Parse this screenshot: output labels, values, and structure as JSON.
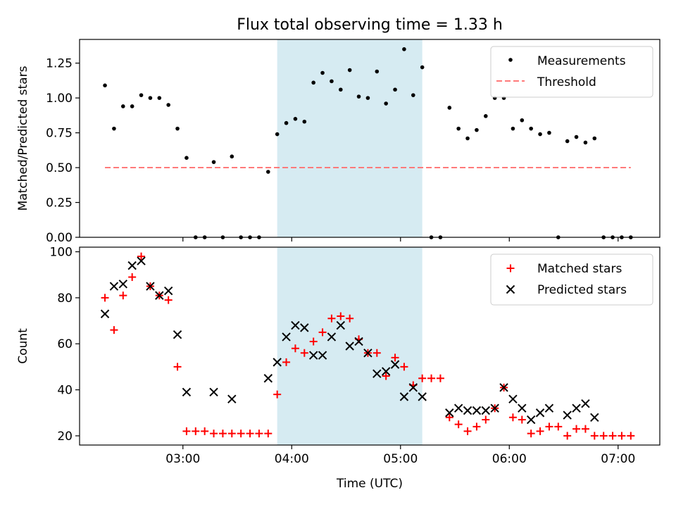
{
  "chart_data": {
    "type": "scatter",
    "title": "Flux total observing time = 1.33 h",
    "xlabel": "Time (UTC)",
    "x_tick_labels": [
      "03:00",
      "04:00",
      "05:00",
      "06:00",
      "07:00"
    ],
    "shaded_interval": [
      "03:52",
      "05:12"
    ],
    "shade_color": "#add8e6",
    "panels": [
      {
        "ylabel": "Matched/Predicted stars",
        "ylim": [
          0,
          1.42
        ],
        "y_tick_labels": [
          "0.00",
          "0.25",
          "0.50",
          "0.75",
          "1.00",
          "1.25"
        ],
        "legend_position": "upper right",
        "series": [
          {
            "name": "Measurements",
            "marker": "dot",
            "color": "#000000",
            "points": [
              [
                "02:17",
                1.09
              ],
              [
                "02:22",
                0.78
              ],
              [
                "02:27",
                0.94
              ],
              [
                "02:32",
                0.94
              ],
              [
                "02:37",
                1.02
              ],
              [
                "02:42",
                1.0
              ],
              [
                "02:47",
                1.0
              ],
              [
                "02:52",
                0.95
              ],
              [
                "02:57",
                0.78
              ],
              [
                "03:02",
                0.57
              ],
              [
                "03:07",
                0.0
              ],
              [
                "03:12",
                0.0
              ],
              [
                "03:17",
                0.54
              ],
              [
                "03:22",
                0.0
              ],
              [
                "03:27",
                0.58
              ],
              [
                "03:32",
                0.0
              ],
              [
                "03:37",
                0.0
              ],
              [
                "03:42",
                0.0
              ],
              [
                "03:47",
                0.47
              ],
              [
                "03:52",
                0.74
              ],
              [
                "03:57",
                0.82
              ],
              [
                "04:02",
                0.85
              ],
              [
                "04:07",
                0.83
              ],
              [
                "04:12",
                1.11
              ],
              [
                "04:17",
                1.18
              ],
              [
                "04:22",
                1.12
              ],
              [
                "04:27",
                1.06
              ],
              [
                "04:32",
                1.2
              ],
              [
                "04:37",
                1.01
              ],
              [
                "04:42",
                1.0
              ],
              [
                "04:47",
                1.19
              ],
              [
                "04:52",
                0.96
              ],
              [
                "04:57",
                1.06
              ],
              [
                "05:02",
                1.35
              ],
              [
                "05:07",
                1.02
              ],
              [
                "05:12",
                1.22
              ],
              [
                "05:17",
                0.0
              ],
              [
                "05:22",
                0.0
              ],
              [
                "05:27",
                0.93
              ],
              [
                "05:32",
                0.78
              ],
              [
                "05:37",
                0.71
              ],
              [
                "05:42",
                0.77
              ],
              [
                "05:47",
                0.87
              ],
              [
                "05:52",
                1.0
              ],
              [
                "05:57",
                1.0
              ],
              [
                "06:02",
                0.78
              ],
              [
                "06:07",
                0.84
              ],
              [
                "06:12",
                0.78
              ],
              [
                "06:17",
                0.74
              ],
              [
                "06:22",
                0.75
              ],
              [
                "06:27",
                0.0
              ],
              [
                "06:32",
                0.69
              ],
              [
                "06:37",
                0.72
              ],
              [
                "06:42",
                0.68
              ],
              [
                "06:47",
                0.71
              ],
              [
                "06:52",
                0.0
              ],
              [
                "06:57",
                0.0
              ],
              [
                "07:02",
                0.0
              ],
              [
                "07:07",
                0.0
              ]
            ]
          },
          {
            "name": "Threshold",
            "marker": "dashed-line",
            "color": "#ff7a7a",
            "points": [
              [
                "02:17",
                0.5
              ],
              [
                "07:07",
                0.5
              ]
            ]
          }
        ]
      },
      {
        "ylabel": "Count",
        "ylim": [
          16,
          102
        ],
        "y_tick_labels": [
          "20",
          "40",
          "60",
          "80",
          "100"
        ],
        "legend_position": "upper right",
        "series": [
          {
            "name": "Matched stars",
            "marker": "plus",
            "color": "#ff0000",
            "points": [
              [
                "02:17",
                80
              ],
              [
                "02:22",
                66
              ],
              [
                "02:27",
                81
              ],
              [
                "02:32",
                89
              ],
              [
                "02:37",
                98
              ],
              [
                "02:42",
                85
              ],
              [
                "02:47",
                81
              ],
              [
                "02:52",
                79
              ],
              [
                "02:57",
                50
              ],
              [
                "03:02",
                22
              ],
              [
                "03:07",
                22
              ],
              [
                "03:12",
                22
              ],
              [
                "03:17",
                21
              ],
              [
                "03:22",
                21
              ],
              [
                "03:27",
                21
              ],
              [
                "03:32",
                21
              ],
              [
                "03:37",
                21
              ],
              [
                "03:42",
                21
              ],
              [
                "03:47",
                21
              ],
              [
                "03:52",
                38
              ],
              [
                "03:57",
                52
              ],
              [
                "04:02",
                58
              ],
              [
                "04:07",
                56
              ],
              [
                "04:12",
                61
              ],
              [
                "04:17",
                65
              ],
              [
                "04:22",
                71
              ],
              [
                "04:27",
                72
              ],
              [
                "04:32",
                71
              ],
              [
                "04:37",
                62
              ],
              [
                "04:42",
                56
              ],
              [
                "04:47",
                56
              ],
              [
                "04:52",
                46
              ],
              [
                "04:57",
                54
              ],
              [
                "05:02",
                50
              ],
              [
                "05:07",
                42
              ],
              [
                "05:12",
                45
              ],
              [
                "05:17",
                45
              ],
              [
                "05:22",
                45
              ],
              [
                "05:27",
                28
              ],
              [
                "05:32",
                25
              ],
              [
                "05:37",
                22
              ],
              [
                "05:42",
                24
              ],
              [
                "05:47",
                27
              ],
              [
                "05:52",
                32
              ],
              [
                "05:57",
                41
              ],
              [
                "06:02",
                28
              ],
              [
                "06:07",
                27
              ],
              [
                "06:12",
                21
              ],
              [
                "06:17",
                22
              ],
              [
                "06:22",
                24
              ],
              [
                "06:27",
                24
              ],
              [
                "06:32",
                20
              ],
              [
                "06:37",
                23
              ],
              [
                "06:42",
                23
              ],
              [
                "06:47",
                20
              ],
              [
                "06:52",
                20
              ],
              [
                "06:57",
                20
              ],
              [
                "07:02",
                20
              ],
              [
                "07:07",
                20
              ]
            ]
          },
          {
            "name": "Predicted stars",
            "marker": "x",
            "color": "#000000",
            "points": [
              [
                "02:17",
                73
              ],
              [
                "02:22",
                85
              ],
              [
                "02:27",
                86
              ],
              [
                "02:32",
                94
              ],
              [
                "02:37",
                96
              ],
              [
                "02:42",
                85
              ],
              [
                "02:47",
                81
              ],
              [
                "02:52",
                83
              ],
              [
                "02:57",
                64
              ],
              [
                "03:02",
                39
              ],
              [
                "03:17",
                39
              ],
              [
                "03:27",
                36
              ],
              [
                "03:47",
                45
              ],
              [
                "03:52",
                52
              ],
              [
                "03:57",
                63
              ],
              [
                "04:02",
                68
              ],
              [
                "04:07",
                67
              ],
              [
                "04:12",
                55
              ],
              [
                "04:17",
                55
              ],
              [
                "04:22",
                63
              ],
              [
                "04:27",
                68
              ],
              [
                "04:32",
                59
              ],
              [
                "04:37",
                61
              ],
              [
                "04:42",
                56
              ],
              [
                "04:47",
                47
              ],
              [
                "04:52",
                48
              ],
              [
                "04:57",
                51
              ],
              [
                "05:02",
                37
              ],
              [
                "05:07",
                41
              ],
              [
                "05:12",
                37
              ],
              [
                "05:27",
                30
              ],
              [
                "05:32",
                32
              ],
              [
                "05:37",
                31
              ],
              [
                "05:42",
                31
              ],
              [
                "05:47",
                31
              ],
              [
                "05:52",
                32
              ],
              [
                "05:57",
                41
              ],
              [
                "06:02",
                36
              ],
              [
                "06:07",
                32
              ],
              [
                "06:12",
                27
              ],
              [
                "06:17",
                30
              ],
              [
                "06:22",
                32
              ],
              [
                "06:32",
                29
              ],
              [
                "06:37",
                32
              ],
              [
                "06:42",
                34
              ],
              [
                "06:47",
                28
              ]
            ]
          }
        ]
      }
    ]
  }
}
